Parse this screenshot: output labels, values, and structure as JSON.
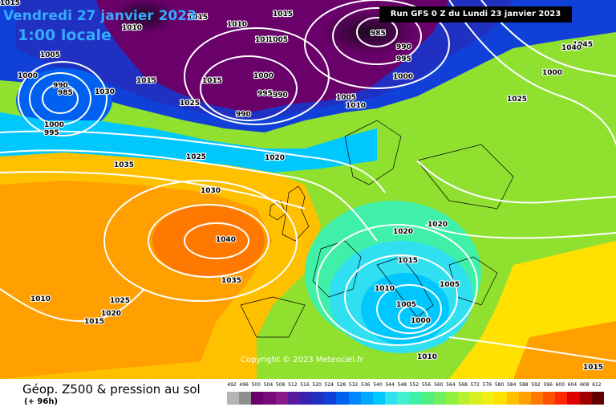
{
  "map": {
    "date_text": "Vendredi 27 janvier 2023",
    "time_text": "1:00 locale",
    "run_text": "Run GFS 0 Z du Lundi 23 janvier 2023",
    "copyright": "Copyright © 2023 Meteociel.fr",
    "isobar_labels": [
      "1015",
      "1010",
      "1015",
      "1015",
      "1010",
      "1010",
      "1005",
      "985",
      "990",
      "995",
      "1000",
      "1045",
      "1040",
      "1005",
      "1000",
      "990",
      "985",
      "1015",
      "1015",
      "1025",
      "1000",
      "995",
      "990",
      "990",
      "1005",
      "1010",
      "1030",
      "1025",
      "1000",
      "995",
      "1000",
      "1025",
      "1035",
      "1030",
      "1020",
      "1040",
      "1035",
      "1020",
      "1020",
      "1015",
      "1010",
      "1005",
      "1005",
      "1000",
      "1010",
      "1010",
      "1025",
      "1020",
      "1015",
      "1015"
    ],
    "colors": {
      "date_text": "#35aaff",
      "isobar": "#ffffff",
      "land_outline": "#000000"
    }
  },
  "footer": {
    "title": "Géop. Z500 & pression au sol",
    "subtitle": "(+ 96h)",
    "scale_labels": [
      "492",
      "496",
      "500",
      "504",
      "508",
      "512",
      "516",
      "520",
      "524",
      "528",
      "532",
      "536",
      "540",
      "544",
      "548",
      "552",
      "556",
      "560",
      "564",
      "568",
      "572",
      "576",
      "580",
      "584",
      "588",
      "592",
      "596",
      "600",
      "604",
      "608",
      "612"
    ],
    "scale_colors": [
      "#b5b5b5",
      "#8f8f8f",
      "#6a006a",
      "#7a0a7a",
      "#8a1a8a",
      "#5a1aa0",
      "#3a20b0",
      "#2030c0",
      "#1040d8",
      "#0060f0",
      "#0088ff",
      "#00a8ff",
      "#00c8ff",
      "#30e0f0",
      "#40f0d0",
      "#40f0a8",
      "#50f080",
      "#70f060",
      "#90f040",
      "#b8f030",
      "#d8f020",
      "#f0f010",
      "#ffe000",
      "#ffc000",
      "#ffa000",
      "#ff7800",
      "#ff5000",
      "#ff2800",
      "#e00000",
      "#a00000",
      "#600000"
    ]
  }
}
